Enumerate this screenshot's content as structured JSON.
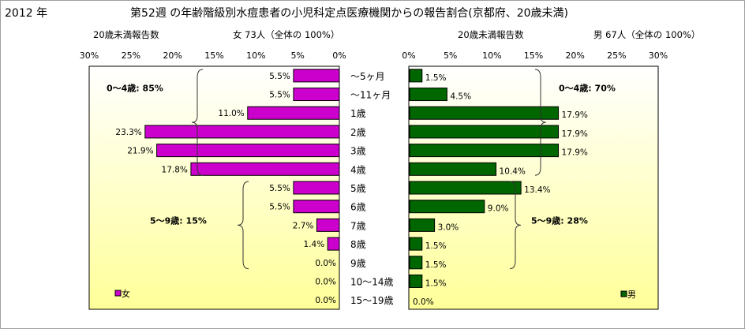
{
  "year_label": "2012 年",
  "title": "第52週 の年齢階級別水痘患者の小児科定点医療機関からの報告割合(京都府、20歳未満)",
  "female_header": {
    "label": "20歳未満報告数",
    "summary": "女  73人（全体の  100%）"
  },
  "male_header": {
    "label": "20歳未満報告数",
    "summary": "男  67人（全体の  100%）"
  },
  "colors": {
    "female": "#cc00cc",
    "male": "#006600",
    "plot_bg_top": "#ffffff",
    "plot_bg_bottom": "#ffff99"
  },
  "chart_data": {
    "type": "bar",
    "orientation": "horizontal-pyramid",
    "categories": [
      "〜5ヶ月",
      "〜11ヶ月",
      "1歳",
      "2歳",
      "3歳",
      "4歳",
      "5歳",
      "6歳",
      "7歳",
      "8歳",
      "9歳",
      "10〜14歳",
      "15〜19歳"
    ],
    "female": {
      "values": [
        5.5,
        5.5,
        11.0,
        23.3,
        21.9,
        17.8,
        5.5,
        5.5,
        2.7,
        1.4,
        0.0,
        0.0,
        0.0
      ],
      "labels": [
        "5.5%",
        "5.5%",
        "11.0%",
        "23.3%",
        "21.9%",
        "17.8%",
        "5.5%",
        "5.5%",
        "2.7%",
        "1.4%",
        "0.0%",
        "0.0%",
        "0.0%"
      ],
      "ticks": [
        "30%",
        "25%",
        "20%",
        "15%",
        "10%",
        "5%",
        "0%"
      ],
      "xlim": [
        0,
        30
      ],
      "legend": "女",
      "brackets": [
        {
          "label": "0〜4歳: 85%",
          "from": 0,
          "to": 5
        },
        {
          "label": "5〜9歳: 15%",
          "from": 6,
          "to": 10
        }
      ]
    },
    "male": {
      "values": [
        1.5,
        4.5,
        17.9,
        17.9,
        17.9,
        10.4,
        13.4,
        9.0,
        3.0,
        1.5,
        1.5,
        1.5,
        0.0
      ],
      "labels": [
        "1.5%",
        "4.5%",
        "17.9%",
        "17.9%",
        "17.9%",
        "10.4%",
        "13.4%",
        "9.0%",
        "3.0%",
        "1.5%",
        "1.5%",
        "1.5%",
        "0.0%"
      ],
      "ticks": [
        "0%",
        "5%",
        "10%",
        "15%",
        "20%",
        "25%",
        "30%"
      ],
      "xlim": [
        0,
        30
      ],
      "legend": "男",
      "brackets": [
        {
          "label": "0〜4歳: 70%",
          "from": 0,
          "to": 5
        },
        {
          "label": "5〜9歳: 28%",
          "from": 6,
          "to": 10
        }
      ]
    }
  }
}
